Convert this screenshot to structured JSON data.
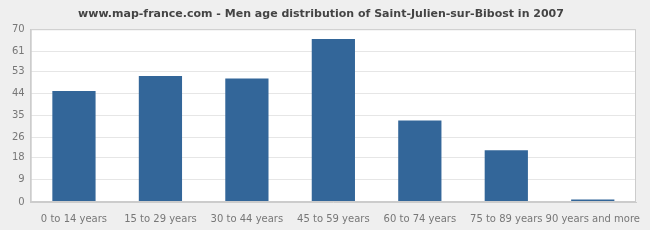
{
  "chart_data": {
    "type": "bar",
    "title": "www.map-france.com - Men age distribution of Saint-Julien-sur-Bibost in 2007",
    "categories": [
      "0 to 14 years",
      "15 to 29 years",
      "30 to 44 years",
      "45 to 59 years",
      "60 to 74 years",
      "75 to 89 years",
      "90 years and more"
    ],
    "values": [
      45,
      51,
      50,
      66,
      33,
      21,
      1
    ],
    "color": "#336699",
    "ylim": [
      0,
      70
    ],
    "yticks": [
      0,
      9,
      18,
      26,
      35,
      44,
      53,
      61,
      70
    ],
    "grid": true
  }
}
